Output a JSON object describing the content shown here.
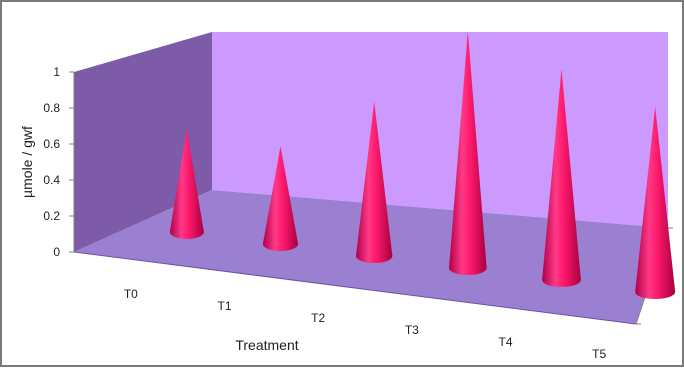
{
  "chart_data": {
    "type": "3d-cone-column",
    "title": "",
    "xlabel": "Treatment",
    "ylabel": "µmole / gwf",
    "categories": [
      "T0",
      "T1",
      "T2",
      "T3",
      "T4",
      "T5"
    ],
    "values": [
      0.4,
      0.38,
      0.6,
      0.92,
      0.82,
      0.72
    ],
    "ylim": [
      0,
      1
    ],
    "yticks": [
      "0",
      "0.2",
      "0.4",
      "0.6",
      "0.8",
      "1"
    ],
    "grid": false,
    "legend": "none",
    "colors": {
      "cone": "#ff1a6e",
      "back_wall": "#cc99ff",
      "side_wall": "#7e5ba8",
      "floor": "#9b7fd0"
    }
  }
}
